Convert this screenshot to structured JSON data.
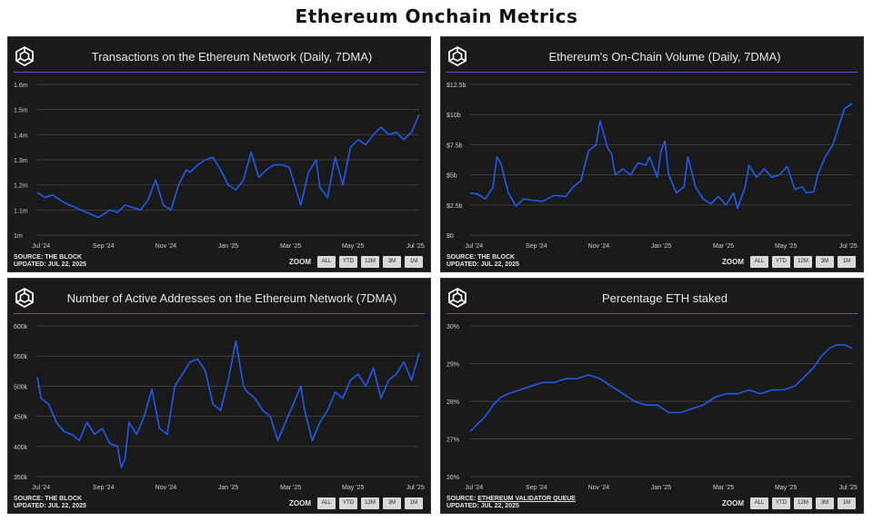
{
  "page": {
    "title": "Ethereum Onchain Metrics"
  },
  "zoom": {
    "label": "ZOOM",
    "buttons": [
      "ALL",
      "YTD",
      "12M",
      "3M",
      "1M"
    ]
  },
  "chart_data": [
    {
      "type": "line",
      "title": "Transactions on the Ethereum Network (Daily, 7DMA)",
      "source": "SOURCE: THE BLOCK",
      "updated": "UPDATED: JUL 22, 2025",
      "xlabels": [
        "Jul '24",
        "Sep '24",
        "Nov '24",
        "Jan '25",
        "Mar '25",
        "May '25",
        "Jul '25"
      ],
      "yticks": [
        "1m",
        "1.1m",
        "1.2m",
        "1.3m",
        "1.4m",
        "1.5m",
        "1.6m"
      ],
      "ylim": [
        1.0,
        1.6
      ],
      "grid": true,
      "color": "#1f5bf0",
      "x": [
        0,
        0.02,
        0.04,
        0.07,
        0.1,
        0.13,
        0.16,
        0.19,
        0.21,
        0.23,
        0.25,
        0.27,
        0.29,
        0.31,
        0.33,
        0.35,
        0.37,
        0.39,
        0.4,
        0.42,
        0.44,
        0.46,
        0.48,
        0.5,
        0.52,
        0.54,
        0.56,
        0.58,
        0.6,
        0.62,
        0.64,
        0.66,
        0.68,
        0.69,
        0.71,
        0.73,
        0.74,
        0.76,
        0.78,
        0.8,
        0.82,
        0.84,
        0.86,
        0.88,
        0.9,
        0.92,
        0.94,
        0.96,
        0.98,
        1.0
      ],
      "values": [
        1.17,
        1.15,
        1.16,
        1.13,
        1.11,
        1.09,
        1.07,
        1.1,
        1.09,
        1.12,
        1.11,
        1.1,
        1.14,
        1.22,
        1.12,
        1.1,
        1.2,
        1.26,
        1.25,
        1.28,
        1.3,
        1.31,
        1.26,
        1.2,
        1.18,
        1.22,
        1.33,
        1.23,
        1.26,
        1.28,
        1.28,
        1.27,
        1.17,
        1.12,
        1.25,
        1.3,
        1.19,
        1.15,
        1.31,
        1.2,
        1.35,
        1.38,
        1.36,
        1.4,
        1.43,
        1.4,
        1.41,
        1.38,
        1.41,
        1.48
      ]
    },
    {
      "type": "line",
      "title": "Ethereum's On-Chain Volume (Daily, 7DMA)",
      "source": "SOURCE: THE BLOCK",
      "updated": "UPDATED: JUL 22, 2025",
      "xlabels": [
        "Jul '24",
        "Sep '24",
        "Nov '24",
        "Jan '25",
        "Mar '25",
        "May '25",
        "Jul '25"
      ],
      "yticks": [
        "$0",
        "$2.5b",
        "$5b",
        "$7.5b",
        "$10b",
        "$12.5b"
      ],
      "ylim": [
        0,
        12.5
      ],
      "grid": true,
      "color": "#1f5bf0",
      "x": [
        0,
        0.02,
        0.04,
        0.06,
        0.07,
        0.08,
        0.1,
        0.12,
        0.14,
        0.16,
        0.19,
        0.22,
        0.25,
        0.27,
        0.29,
        0.31,
        0.33,
        0.34,
        0.36,
        0.37,
        0.38,
        0.4,
        0.42,
        0.44,
        0.46,
        0.47,
        0.49,
        0.5,
        0.51,
        0.52,
        0.54,
        0.56,
        0.57,
        0.59,
        0.61,
        0.63,
        0.65,
        0.67,
        0.69,
        0.7,
        0.72,
        0.73,
        0.75,
        0.77,
        0.79,
        0.81,
        0.83,
        0.85,
        0.87,
        0.88,
        0.9,
        0.91,
        0.93,
        0.95,
        0.97,
        0.98,
        0.99,
        1.0
      ],
      "values": [
        3.5,
        3.4,
        3.0,
        4.0,
        6.5,
        6.0,
        3.5,
        2.4,
        3.0,
        2.9,
        2.8,
        3.3,
        3.2,
        4.0,
        4.5,
        7.0,
        7.5,
        9.5,
        7.2,
        6.8,
        5.0,
        5.5,
        5.0,
        6.0,
        5.8,
        6.5,
        4.8,
        7.0,
        7.8,
        5.0,
        3.5,
        4.0,
        6.5,
        4.0,
        3.0,
        2.6,
        3.2,
        2.5,
        3.5,
        2.2,
        4.0,
        5.8,
        4.8,
        5.5,
        4.8,
        5.0,
        5.7,
        3.8,
        4.0,
        3.5,
        3.6,
        5.0,
        6.5,
        7.5,
        9.5,
        10.5,
        10.7,
        10.9
      ]
    },
    {
      "type": "line",
      "title": "Number of Active Addresses on the Ethereum Network (7DMA)",
      "source": "SOURCE: THE BLOCK",
      "updated": "UPDATED: JUL 22, 2025",
      "xlabels": [
        "Jul '24",
        "Sep '24",
        "Nov '24",
        "Jan '25",
        "Mar '25",
        "May '25",
        "Jul '25"
      ],
      "yticks": [
        "350k",
        "400k",
        "450k",
        "500k",
        "550k",
        "600k"
      ],
      "ylim": [
        350,
        600
      ],
      "grid": true,
      "color": "#1f5bf0",
      "x": [
        0,
        0.01,
        0.03,
        0.05,
        0.07,
        0.09,
        0.11,
        0.13,
        0.15,
        0.17,
        0.19,
        0.21,
        0.22,
        0.23,
        0.24,
        0.26,
        0.28,
        0.3,
        0.32,
        0.34,
        0.36,
        0.38,
        0.4,
        0.42,
        0.44,
        0.46,
        0.48,
        0.5,
        0.52,
        0.54,
        0.55,
        0.57,
        0.59,
        0.61,
        0.63,
        0.65,
        0.67,
        0.69,
        0.7,
        0.72,
        0.74,
        0.76,
        0.78,
        0.8,
        0.82,
        0.84,
        0.86,
        0.88,
        0.9,
        0.92,
        0.94,
        0.96,
        0.98,
        1.0
      ],
      "values": [
        515,
        480,
        470,
        440,
        425,
        420,
        410,
        440,
        420,
        430,
        405,
        400,
        365,
        380,
        440,
        420,
        450,
        495,
        430,
        420,
        500,
        520,
        540,
        545,
        525,
        470,
        460,
        510,
        575,
        500,
        490,
        480,
        460,
        450,
        410,
        440,
        470,
        500,
        460,
        410,
        440,
        460,
        490,
        480,
        510,
        520,
        500,
        530,
        480,
        510,
        520,
        540,
        510,
        555
      ]
    },
    {
      "type": "line",
      "title": "Percentage ETH staked",
      "source": "SOURCE: ",
      "source_link": "ETHEREUM VALIDATOR QUEUE",
      "updated": "UPDATED: JUL 22, 2025",
      "xlabels": [
        "Jul '24",
        "Sep '24",
        "Nov '24",
        "Jan '25",
        "Mar '25",
        "May '25",
        "Jul '25"
      ],
      "yticks": [
        "26%",
        "27%",
        "28%",
        "29%",
        "30%"
      ],
      "ylim": [
        26,
        30
      ],
      "grid": true,
      "color": "#1f5bf0",
      "x": [
        0,
        0.02,
        0.04,
        0.06,
        0.08,
        0.1,
        0.13,
        0.16,
        0.19,
        0.22,
        0.25,
        0.28,
        0.31,
        0.34,
        0.37,
        0.4,
        0.43,
        0.46,
        0.49,
        0.52,
        0.55,
        0.58,
        0.61,
        0.64,
        0.67,
        0.7,
        0.73,
        0.76,
        0.79,
        0.82,
        0.85,
        0.88,
        0.9,
        0.92,
        0.94,
        0.96,
        0.98,
        1.0
      ],
      "values": [
        27.2,
        27.4,
        27.6,
        27.9,
        28.1,
        28.2,
        28.3,
        28.4,
        28.5,
        28.5,
        28.6,
        28.6,
        28.7,
        28.6,
        28.4,
        28.2,
        28.0,
        27.9,
        27.9,
        27.7,
        27.7,
        27.8,
        27.9,
        28.1,
        28.2,
        28.2,
        28.3,
        28.2,
        28.3,
        28.3,
        28.4,
        28.7,
        28.9,
        29.2,
        29.4,
        29.5,
        29.5,
        29.4
      ]
    }
  ]
}
